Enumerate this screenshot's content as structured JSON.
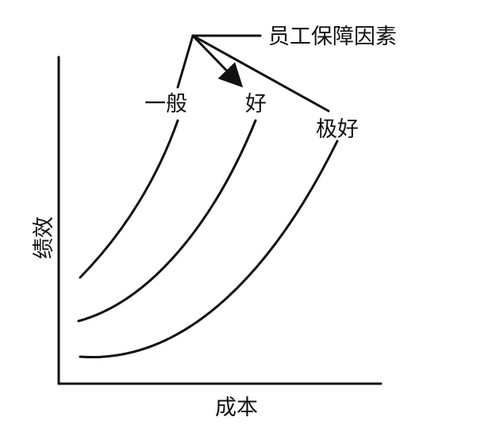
{
  "labels": {
    "factor": "员工保障因素",
    "curve_general": "一般",
    "curve_good": "好",
    "curve_excellent": "极好",
    "y_axis": "绩效",
    "x_axis": "成本"
  },
  "colors": {
    "line": "#111111",
    "background": "#ffffff"
  }
}
